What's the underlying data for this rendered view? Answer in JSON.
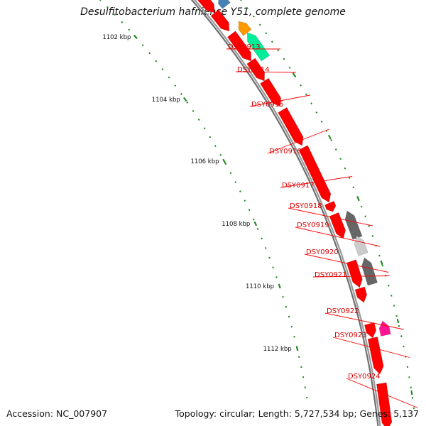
{
  "title": "Desulfitobacterium hafniense Y51, complete genome",
  "footer": {
    "accession": "Accession: NC_007907",
    "topology": "Topology: circular; Length: 5,727,534 bp; Genes: 5,137"
  },
  "chart_data": {
    "type": "circular-genome-map-zoomed",
    "title": "Desulfitobacterium hafniense Y51, complete genome",
    "ruler_labels": [
      "1102 kbp",
      "1104 kbp",
      "1106 kbp",
      "1108 kbp",
      "1110 kbp",
      "1112 kbp"
    ],
    "genes": [
      {
        "id": "DSY0913",
        "strand": "reverse",
        "color": "#ff0000"
      },
      {
        "id": "DSY0914",
        "strand": "reverse",
        "color": "#ff0000"
      },
      {
        "id": "DSY0915",
        "strand": "reverse",
        "color": "#ff0000"
      },
      {
        "id": "DSY0916",
        "strand": "reverse",
        "color": "#ff0000"
      },
      {
        "id": "DSY0917",
        "strand": "reverse",
        "color": "#ff0000"
      },
      {
        "id": "DSY0918",
        "strand": "forward",
        "color": "#666666"
      },
      {
        "id": "DSY0919",
        "strand": "forward",
        "color": "#cccccc"
      },
      {
        "id": "DSY0920",
        "strand": "forward",
        "color": "#666666"
      },
      {
        "id": "DSY0921",
        "strand": "reverse",
        "color": "#ff0000"
      },
      {
        "id": "DSY0922",
        "strand": "forward",
        "color": "#ff1493"
      },
      {
        "id": "DSY0923",
        "strand": "reverse",
        "color": "#ff0000"
      },
      {
        "id": "DSY0924",
        "strand": "reverse",
        "color": "#ff0000"
      }
    ],
    "other_feature_colors": [
      "#4682b4",
      "#ff9900",
      "#00ee99"
    ],
    "backbone_color": "#888888",
    "ruler_color": "#228b22"
  }
}
